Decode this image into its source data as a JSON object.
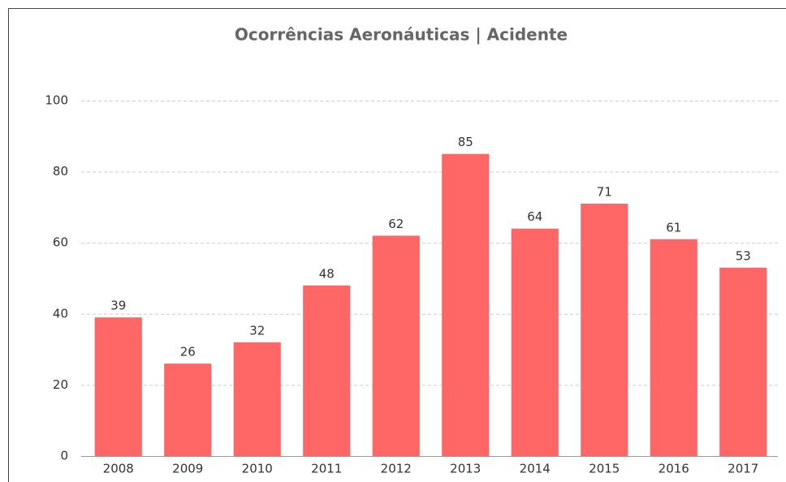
{
  "chart_data": {
    "type": "bar",
    "title": "Ocorrências Aeronáuticas | Acidente",
    "categories": [
      "2008",
      "2009",
      "2010",
      "2011",
      "2012",
      "2013",
      "2014",
      "2015",
      "2016",
      "2017"
    ],
    "values": [
      39,
      26,
      32,
      48,
      62,
      85,
      64,
      71,
      61,
      53
    ],
    "color": "#ff6666",
    "ylim": [
      0,
      100
    ],
    "yticks": [
      0,
      20,
      40,
      60,
      80,
      100
    ],
    "grid": true
  }
}
